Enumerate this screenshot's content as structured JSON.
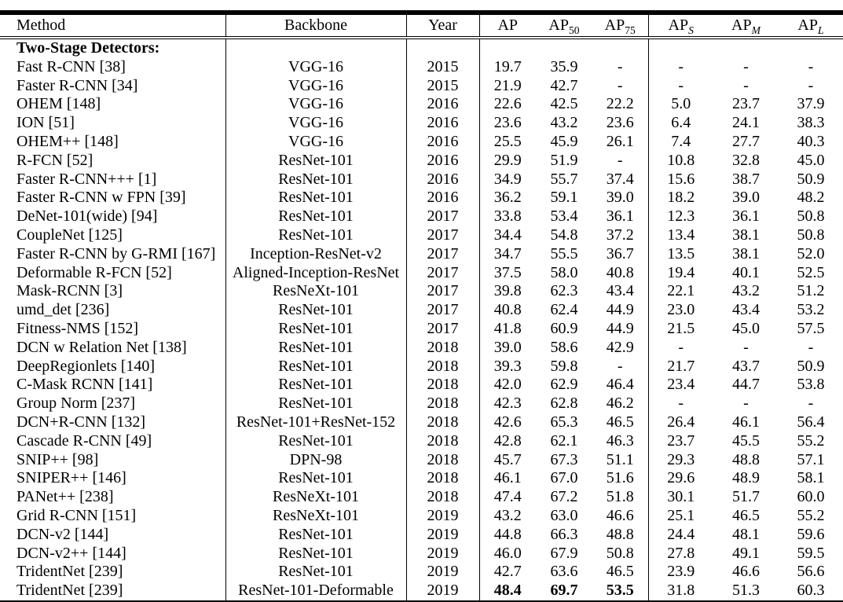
{
  "colors": {
    "background": "#ffffff",
    "text": "#000000",
    "rule": "#000000"
  },
  "table": {
    "columns": [
      {
        "base": "Method",
        "sub": "",
        "italic_sub": false
      },
      {
        "base": "Backbone",
        "sub": "",
        "italic_sub": false
      },
      {
        "base": "Year",
        "sub": "",
        "italic_sub": false
      },
      {
        "base": "AP",
        "sub": "",
        "italic_sub": false
      },
      {
        "base": "AP",
        "sub": "50",
        "italic_sub": false
      },
      {
        "base": "AP",
        "sub": "75",
        "italic_sub": false
      },
      {
        "base": "AP",
        "sub": "S",
        "italic_sub": true
      },
      {
        "base": "AP",
        "sub": "M",
        "italic_sub": true
      },
      {
        "base": "AP",
        "sub": "L",
        "italic_sub": true
      }
    ],
    "section_label": "Two-Stage Detectors:",
    "rows": [
      {
        "cells": [
          "Fast R-CNN [38]",
          "VGG-16",
          "2015",
          "19.7",
          "35.9",
          "-",
          "-",
          "-",
          "-"
        ]
      },
      {
        "cells": [
          "Faster R-CNN [34]",
          "VGG-16",
          "2015",
          "21.9",
          "42.7",
          "-",
          "-",
          "-",
          "-"
        ]
      },
      {
        "cells": [
          "OHEM [148]",
          "VGG-16",
          "2016",
          "22.6",
          "42.5",
          "22.2",
          "5.0",
          "23.7",
          "37.9"
        ]
      },
      {
        "cells": [
          "ION [51]",
          "VGG-16",
          "2016",
          "23.6",
          "43.2",
          "23.6",
          "6.4",
          "24.1",
          "38.3"
        ]
      },
      {
        "cells": [
          "OHEM++ [148]",
          "VGG-16",
          "2016",
          "25.5",
          "45.9",
          "26.1",
          "7.4",
          "27.7",
          "40.3"
        ]
      },
      {
        "cells": [
          "R-FCN [52]",
          "ResNet-101",
          "2016",
          "29.9",
          "51.9",
          "-",
          "10.8",
          "32.8",
          "45.0"
        ]
      },
      {
        "cells": [
          "Faster R-CNN+++ [1]",
          "ResNet-101",
          "2016",
          "34.9",
          "55.7",
          "37.4",
          "15.6",
          "38.7",
          "50.9"
        ]
      },
      {
        "cells": [
          "Faster R-CNN w FPN [39]",
          "ResNet-101",
          "2016",
          "36.2",
          "59.1",
          "39.0",
          "18.2",
          "39.0",
          "48.2"
        ]
      },
      {
        "cells": [
          "DeNet-101(wide) [94]",
          "ResNet-101",
          "2017",
          "33.8",
          "53.4",
          "36.1",
          "12.3",
          "36.1",
          "50.8"
        ]
      },
      {
        "cells": [
          "CoupleNet [125]",
          "ResNet-101",
          "2017",
          "34.4",
          "54.8",
          "37.2",
          "13.4",
          "38.1",
          "50.8"
        ]
      },
      {
        "cells": [
          "Faster R-CNN by G-RMI [167]",
          "Inception-ResNet-v2",
          "2017",
          "34.7",
          "55.5",
          "36.7",
          "13.5",
          "38.1",
          "52.0"
        ]
      },
      {
        "cells": [
          "Deformable R-FCN [52]",
          "Aligned-Inception-ResNet",
          "2017",
          "37.5",
          "58.0",
          "40.8",
          "19.4",
          "40.1",
          "52.5"
        ]
      },
      {
        "cells": [
          "Mask-RCNN [3]",
          "ResNeXt-101",
          "2017",
          "39.8",
          "62.3",
          "43.4",
          "22.1",
          "43.2",
          "51.2"
        ]
      },
      {
        "cells": [
          "umd_det [236]",
          "ResNet-101",
          "2017",
          "40.8",
          "62.4",
          "44.9",
          "23.0",
          "43.4",
          "53.2"
        ]
      },
      {
        "cells": [
          "Fitness-NMS [152]",
          "ResNet-101",
          "2017",
          "41.8",
          "60.9",
          "44.9",
          "21.5",
          "45.0",
          "57.5"
        ]
      },
      {
        "cells": [
          "DCN w Relation Net [138]",
          "ResNet-101",
          "2018",
          "39.0",
          "58.6",
          "42.9",
          "-",
          "-",
          "-"
        ]
      },
      {
        "cells": [
          "DeepRegionlets [140]",
          "ResNet-101",
          "2018",
          "39.3",
          "59.8",
          "-",
          "21.7",
          "43.7",
          "50.9"
        ]
      },
      {
        "cells": [
          "C-Mask RCNN [141]",
          "ResNet-101",
          "2018",
          "42.0",
          "62.9",
          "46.4",
          "23.4",
          "44.7",
          "53.8"
        ]
      },
      {
        "cells": [
          "Group Norm [237]",
          "ResNet-101",
          "2018",
          "42.3",
          "62.8",
          "46.2",
          "-",
          "-",
          "-"
        ]
      },
      {
        "cells": [
          "DCN+R-CNN [132]",
          "ResNet-101+ResNet-152",
          "2018",
          "42.6",
          "65.3",
          "46.5",
          "26.4",
          "46.1",
          "56.4"
        ]
      },
      {
        "cells": [
          "Cascade R-CNN [49]",
          "ResNet-101",
          "2018",
          "42.8",
          "62.1",
          "46.3",
          "23.7",
          "45.5",
          "55.2"
        ]
      },
      {
        "cells": [
          "SNIP++ [98]",
          "DPN-98",
          "2018",
          "45.7",
          "67.3",
          "51.1",
          "29.3",
          "48.8",
          "57.1"
        ]
      },
      {
        "cells": [
          "SNIPER++ [146]",
          "ResNet-101",
          "2018",
          "46.1",
          "67.0",
          "51.6",
          "29.6",
          "48.9",
          "58.1"
        ]
      },
      {
        "cells": [
          "PANet++ [238]",
          "ResNeXt-101",
          "2018",
          "47.4",
          "67.2",
          "51.8",
          "30.1",
          "51.7",
          "60.0"
        ]
      },
      {
        "cells": [
          "Grid R-CNN [151]",
          "ResNeXt-101",
          "2019",
          "43.2",
          "63.0",
          "46.6",
          "25.1",
          "46.5",
          "55.2"
        ]
      },
      {
        "cells": [
          "DCN-v2 [144]",
          "ResNet-101",
          "2019",
          "44.8",
          "66.3",
          "48.8",
          "24.4",
          "48.1",
          "59.6"
        ]
      },
      {
        "cells": [
          "DCN-v2++ [144]",
          "ResNet-101",
          "2019",
          "46.0",
          "67.9",
          "50.8",
          "27.8",
          "49.1",
          "59.5"
        ]
      },
      {
        "cells": [
          "TridentNet [239]",
          "ResNet-101",
          "2019",
          "42.7",
          "63.6",
          "46.5",
          "23.9",
          "46.6",
          "56.6"
        ]
      },
      {
        "cells": [
          "TridentNet [239]",
          "ResNet-101-Deformable",
          "2019",
          "48.4",
          "69.7",
          "53.5",
          "31.8",
          "51.3",
          "60.3"
        ],
        "bold_cols": [
          3,
          4,
          5
        ]
      }
    ]
  }
}
